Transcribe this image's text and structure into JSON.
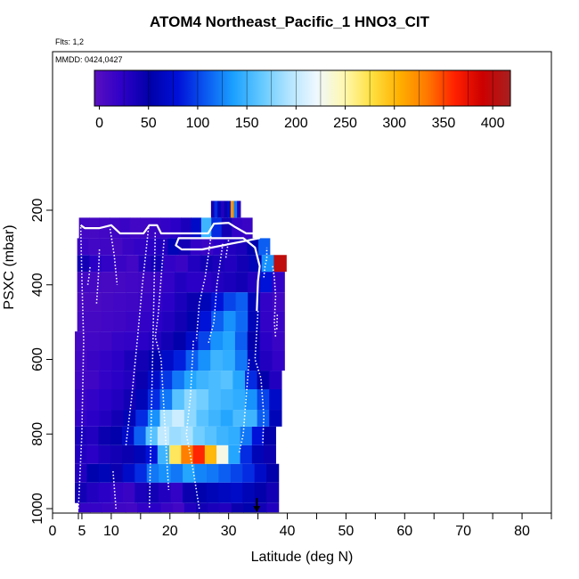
{
  "header": {
    "title": "ATOM4 Northeast_Pacific_1 HNO3_CIT",
    "flights": "Flts: 1,2",
    "dates": "MMDD: 0424,0427"
  },
  "colors": {
    "colorbar": [
      "#5a0fbf",
      "#2d00c8",
      "#0000a8",
      "#0010d8",
      "#0a58f0",
      "#1aa0ff",
      "#62c8ff",
      "#b0e4ff",
      "#eef8ff",
      "#fff8b0",
      "#ffe040",
      "#ffb000",
      "#ff7800",
      "#ff2000",
      "#cc0000",
      "#a82020"
    ],
    "track": "#ffffff",
    "marker": "#000000"
  },
  "chart_data": {
    "type": "heatmap",
    "title": "ATOM4 Northeast_Pacific_1 HNO3_CIT",
    "xlabel": "Latitude (deg N)",
    "ylabel": "PSXC (mbar)",
    "xlim": [
      0,
      85
    ],
    "ylim": [
      1010,
      100
    ],
    "y_reversed": true,
    "x_ticks": [
      0,
      5,
      10,
      20,
      30,
      40,
      50,
      60,
      70,
      80
    ],
    "x_minor_ticks": [
      4.4,
      15,
      25,
      35,
      45,
      55,
      65,
      75,
      85
    ],
    "y_ticks": [
      200,
      400,
      600,
      800,
      1000
    ],
    "colorbar": {
      "range": [
        -5,
        418
      ],
      "ticks": [
        0,
        50,
        100,
        150,
        200,
        250,
        300,
        350,
        400
      ]
    },
    "pressure_rows": [
      {
        "p": [
          985,
          1010
        ],
        "lat": [
          4.4,
          38.5
        ],
        "vals": [
          18,
          18,
          15,
          12,
          10,
          20,
          25,
          15,
          10,
          30,
          40,
          35,
          30,
          45,
          55,
          40,
          30
        ]
      },
      {
        "p": [
          930,
          985
        ],
        "lat": [
          3.8,
          38.5
        ],
        "vals": [
          40,
          30,
          25,
          20,
          15,
          35,
          40,
          30,
          20,
          45,
          55,
          60,
          65,
          70,
          60,
          50,
          40
        ]
      },
      {
        "p": [
          880,
          930
        ],
        "lat": [
          3.8,
          38.5
        ],
        "vals": [
          30,
          55,
          60,
          45,
          70,
          90,
          120,
          130,
          120,
          140,
          125,
          120,
          110,
          100,
          90,
          70,
          50
        ]
      },
      {
        "p": [
          830,
          880
        ],
        "lat": [
          3.8,
          38.0
        ],
        "vals": [
          30,
          25,
          35,
          40,
          45,
          60,
          80,
          150,
          270,
          330,
          360,
          300,
          230,
          140,
          90,
          60,
          45
        ]
      },
      {
        "p": [
          780,
          830
        ],
        "lat": [
          3.8,
          38.0
        ],
        "vals": [
          35,
          30,
          45,
          50,
          70,
          110,
          160,
          200,
          185,
          190,
          170,
          160,
          150,
          145,
          120,
          80,
          50
        ]
      },
      {
        "p": [
          735,
          780
        ],
        "lat": [
          3.8,
          39.0
        ],
        "vals": [
          20,
          25,
          30,
          40,
          60,
          90,
          130,
          190,
          205,
          180,
          160,
          150,
          140,
          155,
          150,
          110,
          60
        ]
      },
      {
        "p": [
          680,
          735
        ],
        "lat": [
          3.8,
          39.0
        ],
        "vals": [
          15,
          20,
          25,
          30,
          40,
          60,
          90,
          120,
          160,
          180,
          170,
          155,
          150,
          145,
          130,
          100,
          70
        ]
      },
      {
        "p": [
          630,
          680
        ],
        "lat": [
          3.8,
          39.0
        ],
        "vals": [
          10,
          12,
          20,
          25,
          30,
          45,
          70,
          95,
          120,
          140,
          150,
          155,
          160,
          140,
          90,
          50,
          30
        ]
      },
      {
        "p": [
          575,
          630
        ],
        "lat": [
          3.8,
          39.5
        ],
        "vals": [
          10,
          15,
          20,
          25,
          35,
          40,
          55,
          70,
          85,
          110,
          130,
          150,
          145,
          120,
          60,
          30,
          20
        ]
      },
      {
        "p": [
          525,
          575
        ],
        "lat": [
          3.8,
          39.5
        ],
        "vals": [
          8,
          10,
          12,
          18,
          20,
          25,
          30,
          40,
          50,
          70,
          100,
          130,
          140,
          110,
          50,
          25,
          15
        ]
      },
      {
        "p": [
          470,
          525
        ],
        "lat": [
          4.2,
          39.5
        ],
        "vals": [
          8,
          8,
          10,
          12,
          15,
          20,
          25,
          30,
          40,
          55,
          80,
          110,
          130,
          115,
          60,
          20,
          15
        ]
      },
      {
        "p": [
          420,
          470
        ],
        "lat": [
          4.2,
          39.5
        ],
        "vals": [
          5,
          5,
          8,
          10,
          12,
          15,
          20,
          25,
          35,
          45,
          60,
          80,
          100,
          110,
          60,
          20,
          10
        ]
      },
      {
        "p": [
          365,
          420
        ],
        "lat": [
          4.2,
          39.5
        ],
        "vals": [
          10,
          8,
          6,
          8,
          10,
          12,
          15,
          20,
          30,
          25,
          25,
          30,
          35,
          40,
          30,
          80,
          20
        ]
      },
      {
        "p": [
          320,
          365
        ],
        "lat": [
          4.2,
          39.8
        ],
        "vals": [
          40,
          25,
          20,
          15,
          10,
          30,
          40,
          20,
          15,
          30,
          40,
          35,
          30,
          40,
          60,
          130,
          400
        ]
      },
      {
        "p": [
          275,
          320
        ],
        "lat": [
          4.2,
          37.0
        ],
        "vals": [
          15,
          10,
          12,
          8,
          15,
          20,
          25,
          30,
          60,
          40,
          20,
          15,
          25,
          30,
          35,
          55,
          110
        ]
      },
      {
        "p": [
          220,
          275
        ],
        "lat": [
          4.5,
          34.0
        ],
        "vals": [
          10,
          8,
          10,
          12,
          15,
          10,
          12,
          15,
          20,
          25,
          35,
          70,
          150,
          90,
          40,
          20,
          15
        ]
      },
      {
        "p": [
          175,
          220
        ],
        "lat": [
          27.0,
          32.0
        ],
        "vals": [
          40,
          90,
          60,
          30,
          45,
          70,
          320,
          120,
          30
        ]
      }
    ],
    "flight_track_solid": [
      [
        4.8,
        240
      ],
      [
        5.5,
        248
      ],
      [
        8.0,
        248
      ],
      [
        10.0,
        240
      ],
      [
        11.5,
        262
      ],
      [
        13.0,
        262
      ],
      [
        15.5,
        262
      ],
      [
        16.5,
        240
      ],
      [
        17.8,
        240
      ],
      [
        18.5,
        262
      ],
      [
        26.5,
        262
      ],
      [
        27.5,
        236
      ],
      [
        30.0,
        234
      ],
      [
        31.0,
        244
      ],
      [
        33.0,
        262
      ],
      [
        34.8,
        262
      ],
      [
        35.2,
        275
      ],
      [
        25.5,
        305
      ],
      [
        22.0,
        305
      ],
      [
        21.0,
        294
      ],
      [
        21.5,
        275
      ],
      [
        32.5,
        275
      ],
      [
        34.5,
        300
      ],
      [
        35.3,
        350
      ],
      [
        35.0,
        390
      ],
      [
        34.8,
        470
      ]
    ],
    "flight_track_dotted": [
      [
        [
          4.4,
          1000
        ],
        [
          5.0,
          800
        ],
        [
          5.3,
          550
        ],
        [
          5.0,
          380
        ],
        [
          4.8,
          240
        ]
      ],
      [
        [
          6.0,
          400
        ],
        [
          6.2,
          380
        ],
        [
          6.4,
          350
        ]
      ],
      [
        [
          7.5,
          450
        ],
        [
          7.8,
          380
        ],
        [
          8.0,
          300
        ]
      ],
      [
        [
          9.8,
          250
        ],
        [
          10.5,
          320
        ],
        [
          11.0,
          400
        ]
      ],
      [
        [
          10.3,
          900
        ],
        [
          10.8,
          1000
        ]
      ],
      [
        [
          12.5,
          830
        ],
        [
          13.5,
          700
        ],
        [
          14.5,
          540
        ],
        [
          15.3,
          400
        ],
        [
          16.0,
          300
        ],
        [
          16.4,
          240
        ]
      ],
      [
        [
          17.5,
          260
        ],
        [
          16.5,
          1000
        ]
      ],
      [
        [
          19.0,
          280
        ],
        [
          18.5,
          380
        ],
        [
          18.0,
          480
        ],
        [
          17.5,
          540
        ],
        [
          18.5,
          600
        ],
        [
          19.5,
          880
        ],
        [
          19.8,
          950
        ]
      ],
      [
        [
          24.0,
          550
        ],
        [
          23.5,
          700
        ],
        [
          22.8,
          800
        ],
        [
          24.0,
          900
        ],
        [
          25.0,
          1000
        ]
      ],
      [
        [
          27.0,
          270
        ],
        [
          26.0,
          380
        ],
        [
          25.0,
          450
        ],
        [
          24.5,
          550
        ]
      ],
      [
        [
          29.0,
          290
        ],
        [
          28.0,
          400
        ],
        [
          27.5,
          500
        ],
        [
          26.5,
          560
        ]
      ],
      [
        [
          30.0,
          280
        ],
        [
          29.5,
          330
        ]
      ],
      [
        [
          33.5,
          600
        ],
        [
          33.0,
          700
        ],
        [
          32.5,
          800
        ],
        [
          31.8,
          850
        ]
      ],
      [
        [
          35.0,
          470
        ],
        [
          34.5,
          600
        ],
        [
          35.5,
          650
        ],
        [
          36.0,
          750
        ],
        [
          35.8,
          830
        ]
      ],
      [
        [
          36.0,
          380
        ],
        [
          36.2,
          350
        ],
        [
          36.5,
          330
        ],
        [
          36.5,
          300
        ]
      ],
      [
        [
          37.5,
          350
        ],
        [
          37.8,
          380
        ],
        [
          38.0,
          430
        ],
        [
          37.8,
          500
        ],
        [
          38.0,
          540
        ]
      ],
      [
        [
          38.3,
          480
        ],
        [
          38.2,
          520
        ]
      ]
    ],
    "marker": {
      "x": 34.8,
      "y": 1005,
      "shape": "down-arrow"
    }
  }
}
